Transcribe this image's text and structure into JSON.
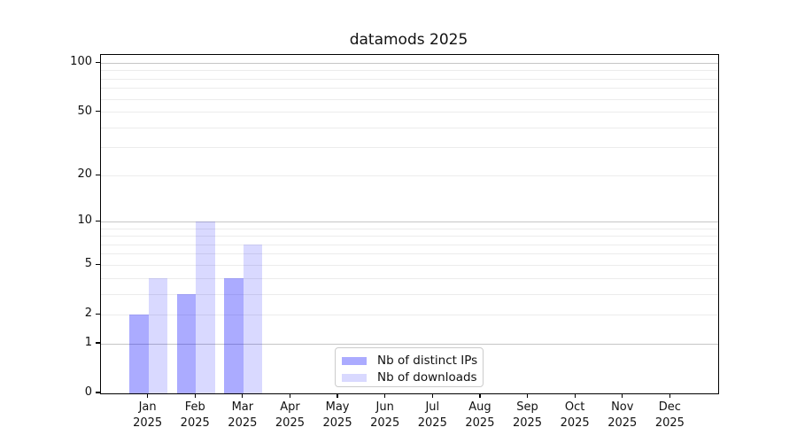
{
  "chart_data": {
    "type": "bar",
    "title": "datamods 2025",
    "categories": [
      {
        "month": "Jan",
        "year": "2025"
      },
      {
        "month": "Feb",
        "year": "2025"
      },
      {
        "month": "Mar",
        "year": "2025"
      },
      {
        "month": "Apr",
        "year": "2025"
      },
      {
        "month": "May",
        "year": "2025"
      },
      {
        "month": "Jun",
        "year": "2025"
      },
      {
        "month": "Jul",
        "year": "2025"
      },
      {
        "month": "Aug",
        "year": "2025"
      },
      {
        "month": "Sep",
        "year": "2025"
      },
      {
        "month": "Oct",
        "year": "2025"
      },
      {
        "month": "Nov",
        "year": "2025"
      },
      {
        "month": "Dec",
        "year": "2025"
      }
    ],
    "series": [
      {
        "key": "distinct-ips",
        "name": "Nb of distinct IPs",
        "color": "rgba(0,0,255,0.33)",
        "color_hex_on_white": "#ababff",
        "values": [
          2,
          3,
          4,
          0,
          0,
          0,
          0,
          0,
          0,
          0,
          0,
          0
        ]
      },
      {
        "key": "downloads",
        "name": "Nb of downloads",
        "color": "rgba(0,0,255,0.15)",
        "color_hex_on_white": "#d9d9ff",
        "values": [
          4,
          10,
          7,
          0,
          0,
          0,
          0,
          0,
          0,
          0,
          0,
          0
        ]
      }
    ],
    "yscale": "log1p",
    "ylim": [
      0,
      100
    ],
    "yticks_labeled": [
      0,
      1,
      2,
      5,
      10,
      20,
      50,
      100
    ],
    "ygrid_emphasized": [
      1,
      10,
      100
    ],
    "ygrid_faint": [
      2,
      3,
      4,
      5,
      6,
      7,
      8,
      9,
      20,
      30,
      40,
      50,
      60,
      70,
      80,
      90
    ],
    "grid": true,
    "legend_position": "lower center"
  },
  "colors": {
    "grid_emphasized": "#c6c6c6",
    "grid_faint": "#ececec",
    "spine": "#000000",
    "legend_border": "#cccccc",
    "text": "#111111"
  }
}
